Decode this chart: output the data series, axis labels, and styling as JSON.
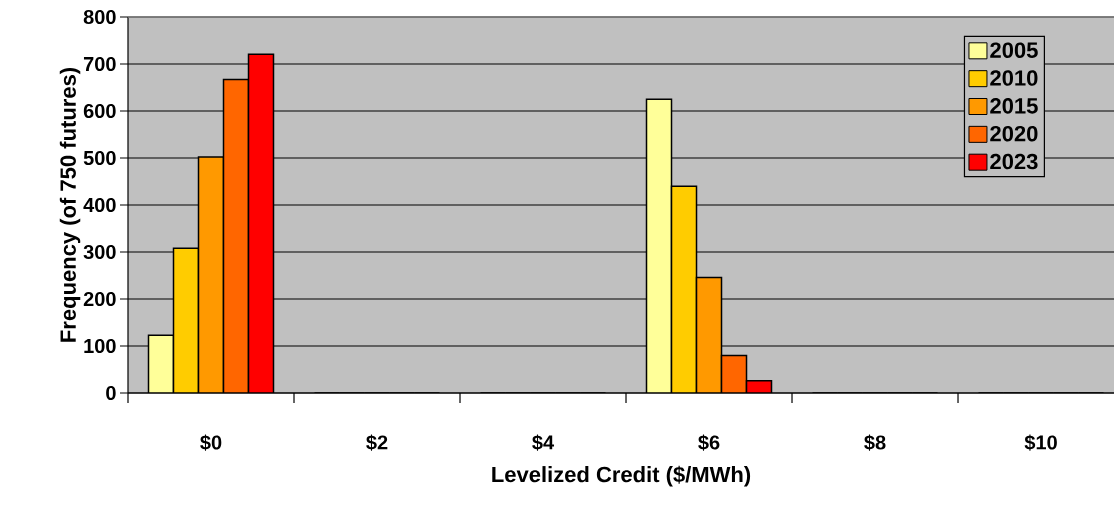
{
  "chart_data": {
    "type": "bar",
    "xlabel": "Levelized Credit ($/MWh)",
    "ylabel": "Frequency (of 750 futures)",
    "categories": [
      "$0",
      "$2",
      "$4",
      "$6",
      "$8",
      "$10"
    ],
    "series": [
      {
        "name": "2005",
        "color": "#ffff99",
        "values": [
          123,
          0,
          0,
          625,
          0,
          0
        ]
      },
      {
        "name": "2010",
        "color": "#ffcc00",
        "values": [
          308,
          0,
          0,
          440,
          0,
          0
        ]
      },
      {
        "name": "2015",
        "color": "#ff9900",
        "values": [
          502,
          0,
          0,
          246,
          0,
          0
        ]
      },
      {
        "name": "2020",
        "color": "#ff6600",
        "values": [
          667,
          0,
          0,
          80,
          0,
          0
        ]
      },
      {
        "name": "2023",
        "color": "#ff0000",
        "values": [
          721,
          0,
          0,
          26,
          0,
          0
        ]
      }
    ],
    "ylim": [
      0,
      800
    ],
    "yticks": [
      0,
      100,
      200,
      300,
      400,
      500,
      600,
      700,
      800
    ],
    "grid": "y",
    "legend": "top right"
  }
}
